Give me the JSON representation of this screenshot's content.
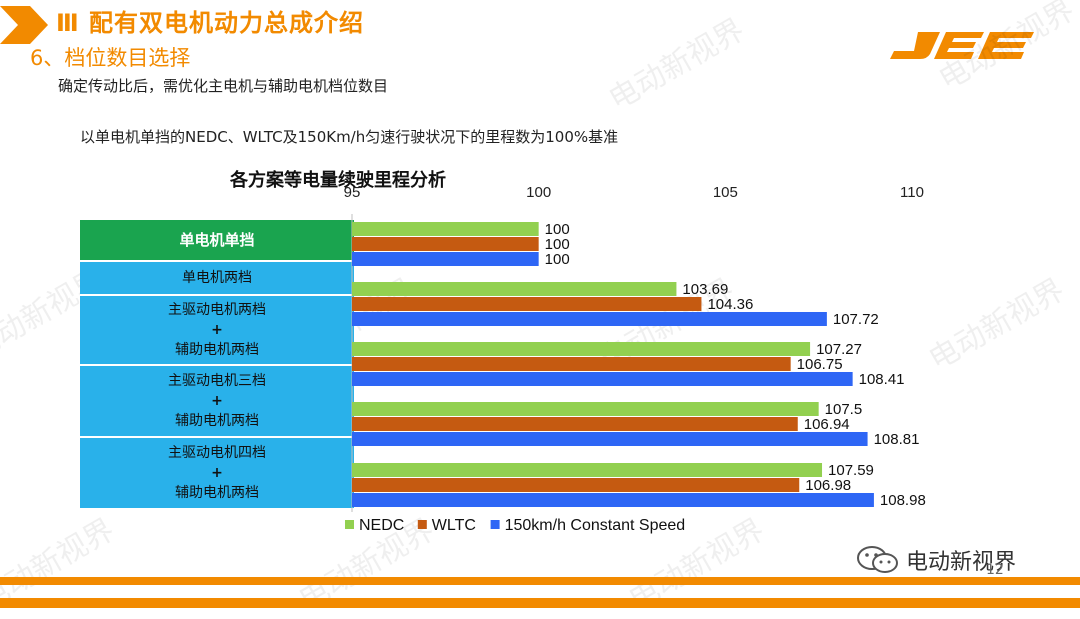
{
  "header": {
    "section_title": "Ⅲ 配有双电机动力总成介绍",
    "sub_title": "6、档位数目选择",
    "logo_text": "JEE",
    "accent_color": "#f28a00"
  },
  "intro_line": "确定传动比后，需优化主电机与辅助电机档位数目",
  "baseline_note": "以单电机单挡的NEDC、WLTC及150Km/h匀速行驶状况下的里程数为100%基准",
  "row_labels": {
    "r0": "单电机单挡",
    "r1": "单电机两档",
    "r2_line1": "主驱动电机两档",
    "r2_plus": "+",
    "r2_line2": "辅助电机两档",
    "r3_line1": "主驱动电机三档",
    "r3_plus": "+",
    "r3_line2": "辅助电机两档",
    "r4_line1": "主驱动电机四档",
    "r4_plus": "+",
    "r4_line2": "辅助电机两档"
  },
  "watermark_text": "电动新视界",
  "footer": {
    "brand": "电动新视界",
    "page_number": "12"
  },
  "chart_data": {
    "type": "bar",
    "orientation": "horizontal",
    "title": "各方案等电量续驶里程分析",
    "categories": [
      "单电机单挡",
      "单电机两档",
      "主驱动电机两档+辅助电机两档",
      "主驱动电机三档+辅助电机两档",
      "主驱动电机四档+辅助电机两档"
    ],
    "series": [
      {
        "name": "NEDC",
        "color": "#92d050",
        "values": [
          100,
          103.69,
          107.27,
          107.5,
          107.59
        ]
      },
      {
        "name": "WLTC",
        "color": "#c55a11",
        "values": [
          100,
          104.36,
          106.75,
          106.94,
          106.98
        ]
      },
      {
        "name": "150km/h Constant Speed",
        "color": "#2e66f5",
        "values": [
          100,
          107.72,
          108.41,
          108.81,
          108.98
        ]
      }
    ],
    "value_labels": [
      [
        "100",
        "100",
        "100"
      ],
      [
        "103.69",
        "104.36",
        "107.72"
      ],
      [
        "107.27",
        "106.75",
        "108.41"
      ],
      [
        "107.5",
        "106.94",
        "108.81"
      ],
      [
        "107.59",
        "106.98",
        "108.98"
      ]
    ],
    "xlim": [
      95,
      110
    ],
    "x_ticks": [
      95,
      100,
      105,
      110
    ],
    "x_tick_labels": [
      "95",
      "100",
      "105",
      "110"
    ],
    "axis_position": "top",
    "legend_position": "bottom",
    "grid": false
  }
}
